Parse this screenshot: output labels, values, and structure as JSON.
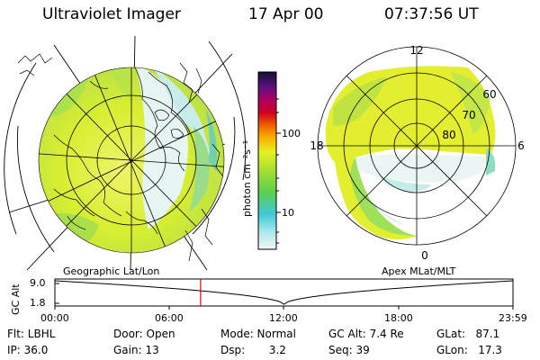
{
  "header": {
    "title": "Ultraviolet Imager",
    "date": "17 Apr 00",
    "time": "07:37:56 UT"
  },
  "colorbar": {
    "unit_label": "photon cm⁻²s⁻¹",
    "ticks": [
      "100",
      "10"
    ]
  },
  "polar_plot": {
    "mlt_labels": {
      "top": "12",
      "left": "18",
      "right": "6",
      "bottom": "0"
    },
    "lat_labels": [
      "60",
      "70",
      "80"
    ]
  },
  "timeline": {
    "left_title": "Geographic Lat/Lon",
    "right_title": "Apex MLat/MLT",
    "axis_label": "GC Alt",
    "y_ticks": [
      "9.0",
      "1.8"
    ],
    "x_ticks": [
      "00:00",
      "06:00",
      "12:00",
      "18:00",
      "23:59"
    ],
    "marker_time_fraction": 0.318
  },
  "info": {
    "flt": "Flt:  LBHL",
    "ip": "IP:  36.0",
    "door": "Door:  Open",
    "gain": "Gain:  13",
    "mode": "Mode:  Normal",
    "dsp": "Dsp:       3.2",
    "gcalt": "GC Alt:  7.4 Re",
    "seq": "Seq:  39",
    "glat": "GLat:   87.1",
    "glon": "GLon:   17.3"
  },
  "colors": {
    "aurora_yellow": "#e8f02a",
    "aurora_green": "#9fe04a",
    "aurora_teal": "#6fd6c8",
    "aurora_pale": "#e8f4f4",
    "marker_red": "#e00000"
  }
}
